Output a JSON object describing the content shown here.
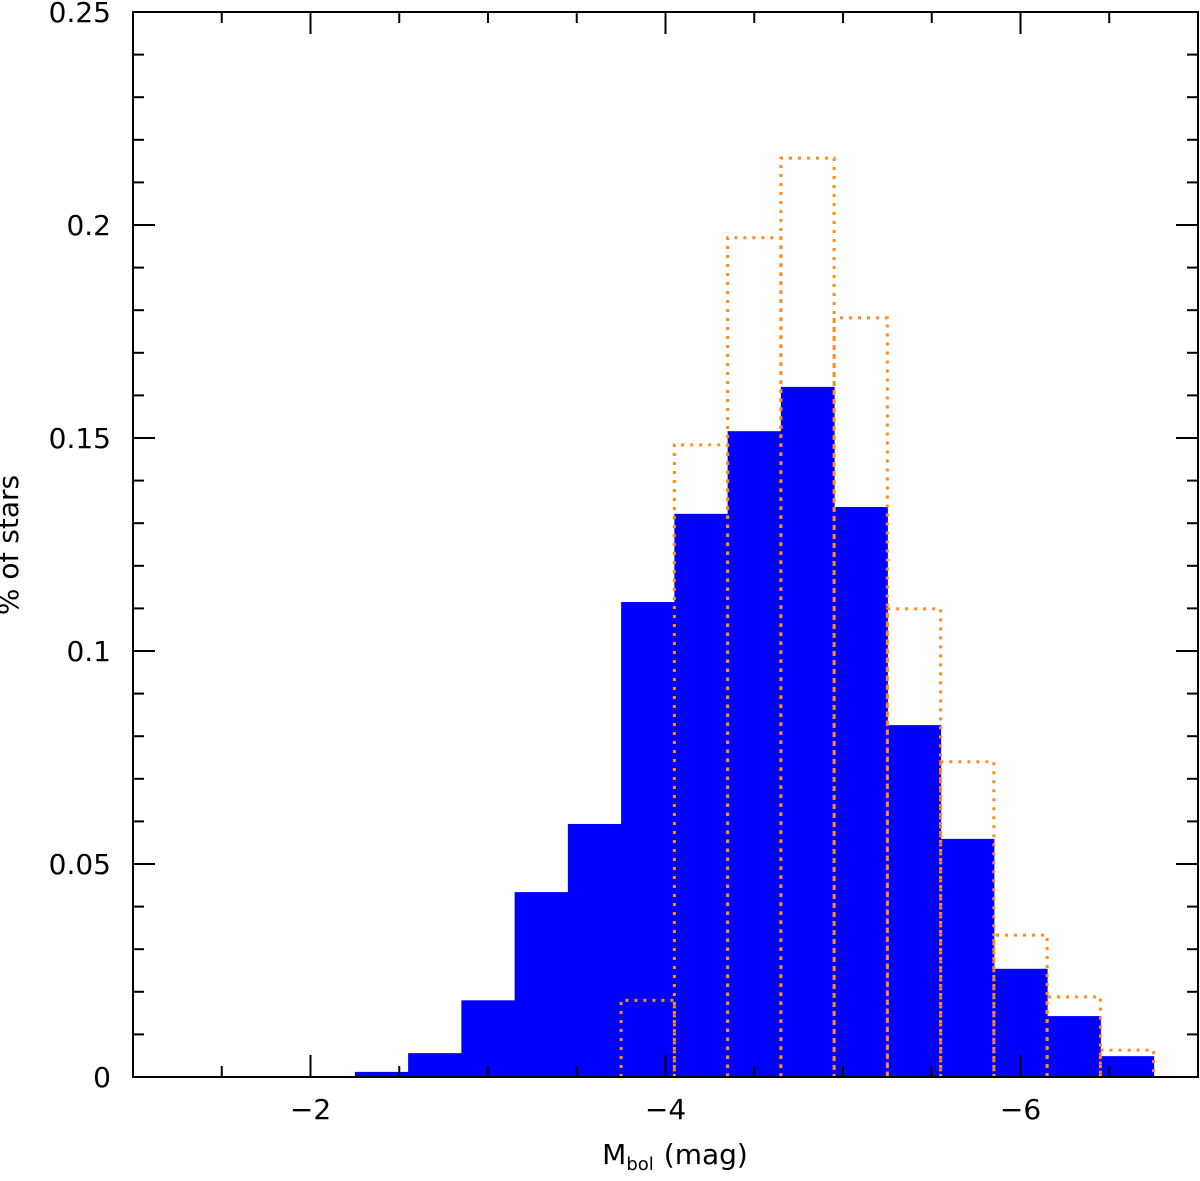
{
  "chart_data": {
    "type": "histogram",
    "xlabel": "M",
    "xlabel_sub": "bol",
    "xlabel_unit": "(mag)",
    "ylabel": "% of stars",
    "xlim": [
      -1,
      -7
    ],
    "xticks": [
      {
        "value": -2,
        "label": "−2"
      },
      {
        "value": -4,
        "label": "−4"
      },
      {
        "value": -6,
        "label": "−6"
      }
    ],
    "x_minor_ticks": [
      -1.5,
      -2.5,
      -3,
      -3.5,
      -4.5,
      -5,
      -5.5,
      -6.5
    ],
    "ylim": [
      0,
      0.25
    ],
    "yticks": [
      0,
      0.05,
      0.1,
      0.15,
      0.2,
      0.25
    ],
    "y_minor_ticks": [
      0.01,
      0.02,
      0.03,
      0.04,
      0.06,
      0.07,
      0.08,
      0.09,
      0.11,
      0.12,
      0.13,
      0.14,
      0.16,
      0.17,
      0.18,
      0.19,
      0.21,
      0.22,
      0.23,
      0.24
    ],
    "series": [
      {
        "style": "filled",
        "color": "#0000ff",
        "bins": [
          -2.25,
          -2.55,
          -2.85,
          -3.15,
          -3.45,
          -3.75,
          -4.05,
          -4.35,
          -4.65,
          -4.95,
          -5.25,
          -5.55,
          -5.85,
          -6.15,
          -6.45,
          -6.75
        ],
        "values": [
          0.0012,
          0.0056,
          0.018,
          0.0434,
          0.0594,
          0.1115,
          0.1322,
          0.1516,
          0.162,
          0.1338,
          0.0826,
          0.0559,
          0.0254,
          0.0143,
          0.0049
        ]
      },
      {
        "style": "dotted",
        "color": "#ff8c1a",
        "bins": [
          -3.75,
          -4.05,
          -4.35,
          -4.65,
          -4.95,
          -5.25,
          -5.55,
          -5.85,
          -6.15,
          -6.45,
          -6.75
        ],
        "values": [
          0.018,
          0.1484,
          0.197,
          0.2157,
          0.1782,
          0.1099,
          0.074,
          0.0333,
          0.0188,
          0.0063
        ]
      }
    ]
  }
}
